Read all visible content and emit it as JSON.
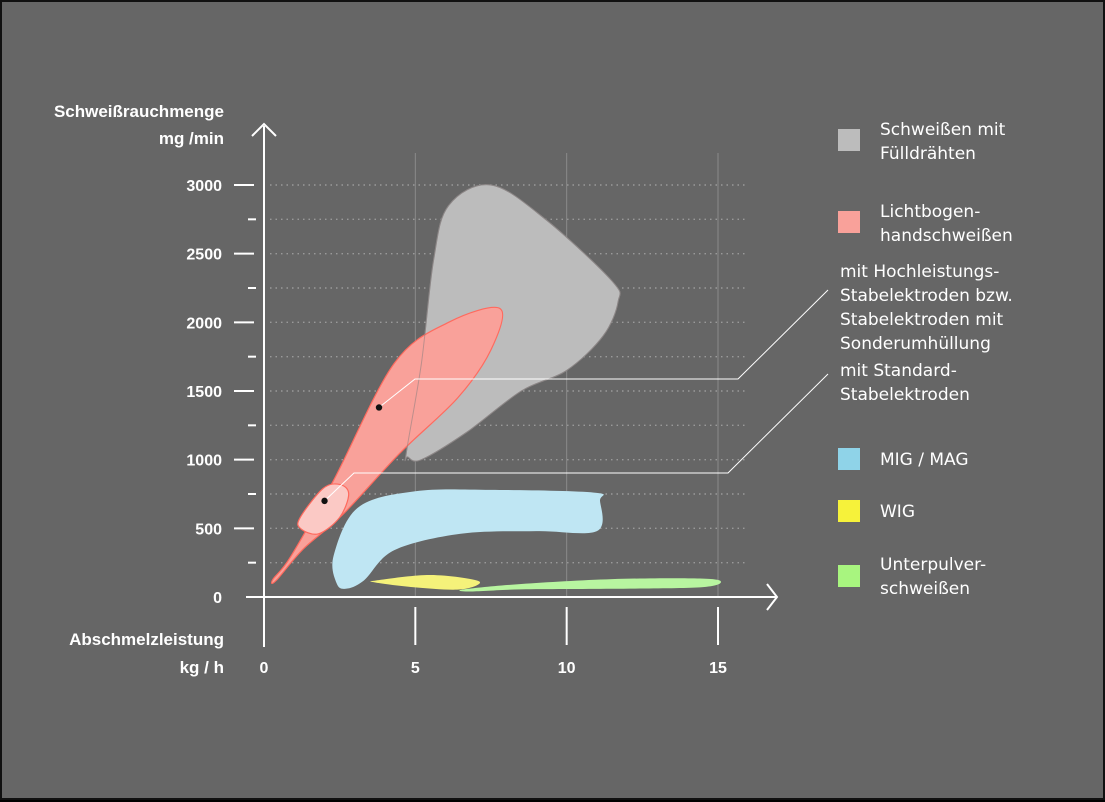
{
  "chart_data": {
    "type": "area",
    "title": "",
    "ylabel": [
      "Schweißrauchmenge",
      "mg /min"
    ],
    "xlabel": [
      "Abschmelzleistung",
      "kg / h"
    ],
    "xlim": [
      0,
      15
    ],
    "ylim": [
      0,
      3000
    ],
    "x_ticks": [
      0,
      5,
      10,
      15
    ],
    "y_ticks": [
      0,
      500,
      1000,
      1500,
      2000,
      2500,
      3000
    ],
    "y_minor_ticks": [
      250,
      750,
      1250,
      1750,
      2250,
      2750
    ],
    "grid": "vertical solid at major x ticks, horizontal dotted every 250",
    "legend_position": "right",
    "series": [
      {
        "name": "Schweißen mit Fülldrähten",
        "color": "#bcbcbc",
        "outline": [
          [
            4.7,
            1050
          ],
          [
            5.2,
            1700
          ],
          [
            5.6,
            2450
          ],
          [
            6.1,
            2850
          ],
          [
            7.5,
            3000
          ],
          [
            9.3,
            2750
          ],
          [
            11.5,
            2300
          ],
          [
            11.7,
            2150
          ],
          [
            11.2,
            1900
          ],
          [
            10,
            1650
          ],
          [
            8.5,
            1500
          ],
          [
            6.7,
            1200
          ],
          [
            5.2,
            1000
          ],
          [
            4.75,
            1020
          ]
        ]
      },
      {
        "name": "Lichtbogenhandschweißen – mit Hochleistungs-Stabelektroden bzw. Stabelektroden mit Sonderumhüllung",
        "color": "#f9a19a",
        "outline": [
          [
            0.3,
            130
          ],
          [
            0.9,
            300
          ],
          [
            2.3,
            850
          ],
          [
            4.3,
            1700
          ],
          [
            6.1,
            2000
          ],
          [
            7.8,
            2100
          ],
          [
            7.5,
            1800
          ],
          [
            6.4,
            1450
          ],
          [
            4.5,
            1050
          ],
          [
            2.6,
            600
          ],
          [
            1.3,
            350
          ],
          [
            0.4,
            120
          ]
        ],
        "marker": [
          3.8,
          1380
        ]
      },
      {
        "name": "Lichtbogenhandschweißen – mit Standard-Stabelektroden",
        "color": "#fbc9c5",
        "outline": [
          [
            1.2,
            580
          ],
          [
            1.95,
            790
          ],
          [
            2.5,
            820
          ],
          [
            2.8,
            750
          ],
          [
            2.5,
            580
          ],
          [
            1.8,
            460
          ],
          [
            1.2,
            500
          ]
        ],
        "marker": [
          2.0,
          700
        ]
      },
      {
        "name": "MIG / MAG",
        "color": "#bfe6f3",
        "outline": [
          [
            2.4,
            100
          ],
          [
            2.3,
            300
          ],
          [
            3.1,
            650
          ],
          [
            5,
            770
          ],
          [
            7.5,
            780
          ],
          [
            10.9,
            760
          ],
          [
            11.1,
            700
          ],
          [
            11,
            480
          ],
          [
            9,
            480
          ],
          [
            6.5,
            460
          ],
          [
            4.3,
            340
          ],
          [
            3.3,
            120
          ],
          [
            2.7,
            60
          ]
        ]
      },
      {
        "name": "WIG",
        "color": "#f5f27a",
        "outline": [
          [
            3.7,
            120
          ],
          [
            5.5,
            160
          ],
          [
            7.1,
            115
          ],
          [
            6.5,
            55
          ],
          [
            5,
            70
          ],
          [
            3.7,
            105
          ]
        ]
      },
      {
        "name": "Unterpulverschweißen",
        "color": "#b8f5a0",
        "outline": [
          [
            6.6,
            55
          ],
          [
            8.5,
            95
          ],
          [
            11.5,
            130
          ],
          [
            14.4,
            135
          ],
          [
            15.1,
            110
          ],
          [
            14.4,
            70
          ],
          [
            11.5,
            60
          ],
          [
            8.5,
            55
          ],
          [
            6.8,
            40
          ]
        ]
      }
    ],
    "legend": [
      {
        "label": "Schweißen mit Fülldrähten",
        "lines": [
          "Schweißen mit",
          "Fülldrähten"
        ],
        "color": "#bcbcbc"
      },
      {
        "label": "Lichtbogenhandschweißen",
        "lines": [
          "Lichtbogen-",
          "handschweißen"
        ],
        "color": "#f9a19a"
      },
      {
        "label": "mit Hochleistungs-Stabelektroden bzw. Stabelektroden mit Sonderumhüllung",
        "lines": [
          "mit Hochleistungs-",
          "Stabelektroden bzw.",
          "Stabelektroden mit",
          "Sonderumhüllung"
        ],
        "color": ""
      },
      {
        "label": "mit Standard-Stabelektroden",
        "lines": [
          "mit Standard-",
          "Stabelektroden"
        ],
        "color": ""
      },
      {
        "label": "MIG / MAG",
        "lines": [
          "MIG / MAG"
        ],
        "color": "#8fd3e8"
      },
      {
        "label": "WIG",
        "lines": [
          "WIG"
        ],
        "color": "#f6f23a"
      },
      {
        "label": "Unterpulverschweißen",
        "lines": [
          "Unterpulver-",
          "schweißen"
        ],
        "color": "#a8f57f"
      }
    ]
  }
}
